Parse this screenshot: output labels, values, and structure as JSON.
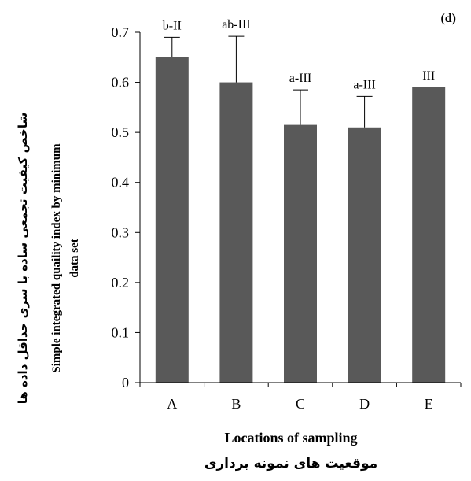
{
  "chart_data": {
    "type": "bar",
    "panel_label": "(d)",
    "categories": [
      "A",
      "B",
      "C",
      "D",
      "E"
    ],
    "values": [
      0.65,
      0.6,
      0.515,
      0.51,
      0.59
    ],
    "error_upper": [
      0.69,
      0.692,
      0.585,
      0.572,
      null
    ],
    "annotations": [
      "b-II",
      "ab-III",
      "a-III",
      "a-III",
      "III"
    ],
    "ylim": [
      0,
      0.7
    ],
    "yticks": [
      "0",
      "0.1",
      "0.2",
      "0.3",
      "0.4",
      "0.5",
      "0.6",
      "0.7"
    ],
    "xlabel": "Locations of sampling",
    "xlabel_fa": "موقعیت های نمونه برداری",
    "ylabel_line1": "Simple integrated quaility index by minimum",
    "ylabel_line2": "data set",
    "ylabel_fa": "شاخص کیفیت تجمعی ساده با سری حداقل داده ها",
    "bar_color": "#595959",
    "grid": false
  }
}
